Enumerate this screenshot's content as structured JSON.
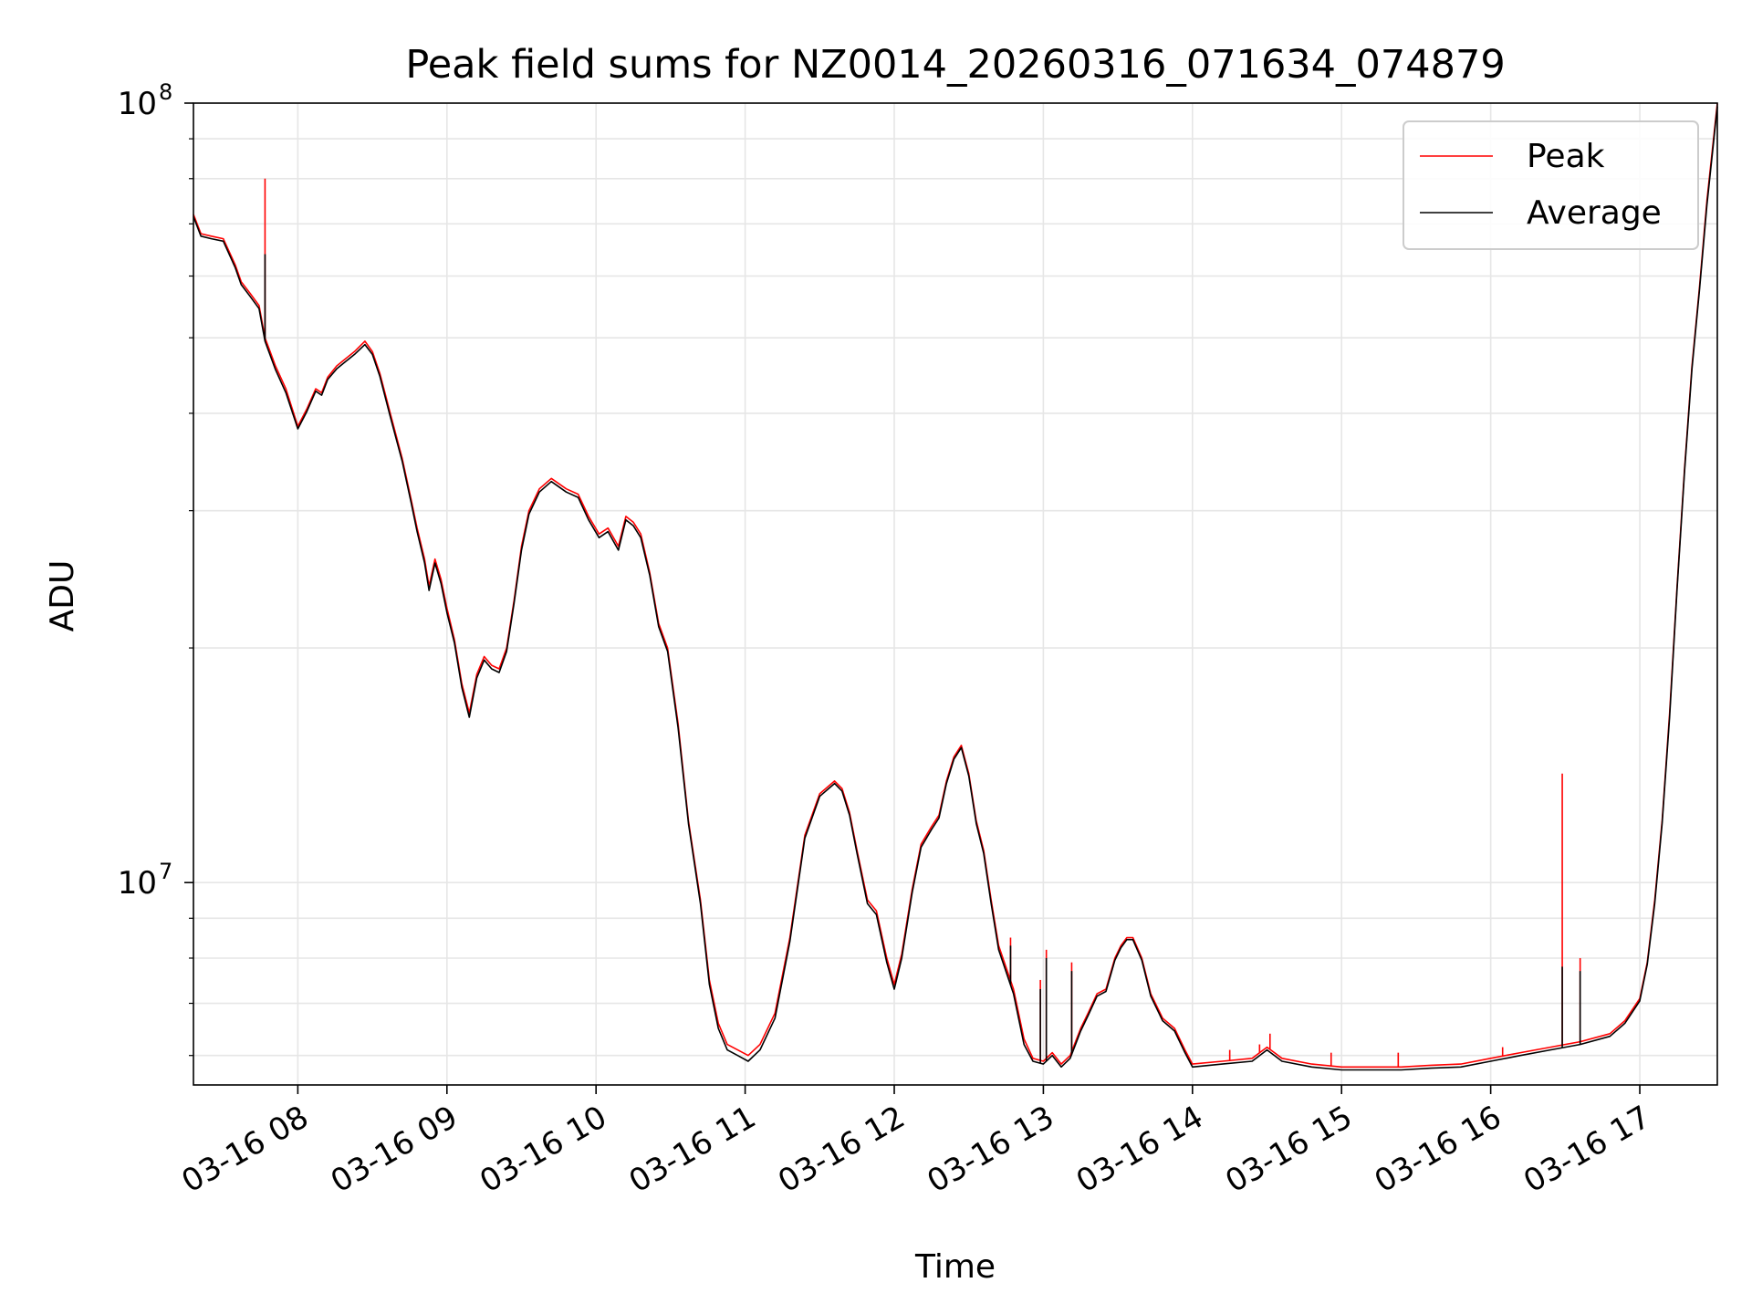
{
  "chart_data": {
    "type": "line",
    "title": "Peak field sums for NZ0014_20260316_071634_074879",
    "xlabel": "Time",
    "ylabel": "ADU",
    "yscale": "log",
    "ylim": [
      5500000,
      100000000
    ],
    "xlim": [
      7.3,
      17.52
    ],
    "grid": true,
    "legend_position": "top-right",
    "x_ticks": [
      {
        "value": 8,
        "label": "03-16 08"
      },
      {
        "value": 9,
        "label": "03-16 09"
      },
      {
        "value": 10,
        "label": "03-16 10"
      },
      {
        "value": 11,
        "label": "03-16 11"
      },
      {
        "value": 12,
        "label": "03-16 12"
      },
      {
        "value": 13,
        "label": "03-16 13"
      },
      {
        "value": 14,
        "label": "03-16 14"
      },
      {
        "value": 15,
        "label": "03-16 15"
      },
      {
        "value": 16,
        "label": "03-16 16"
      },
      {
        "value": 17,
        "label": "03-16 17"
      }
    ],
    "y_major_ticks": [
      {
        "value": 10000000,
        "base": "10",
        "exp": "7"
      },
      {
        "value": 100000000,
        "base": "10",
        "exp": "8"
      }
    ],
    "y_minor_ticks": [
      6000000,
      7000000,
      8000000,
      9000000,
      20000000,
      30000000,
      40000000,
      50000000,
      60000000,
      70000000,
      80000000,
      90000000
    ],
    "series": [
      {
        "name": "Peak",
        "color": "#ff0000",
        "x": [
          7.3,
          7.35,
          7.42,
          7.5,
          7.58,
          7.62,
          7.68,
          7.74,
          7.78,
          7.85,
          7.92,
          8.0,
          8.06,
          8.12,
          8.16,
          8.2,
          8.26,
          8.32,
          8.38,
          8.45,
          8.5,
          8.55,
          8.62,
          8.7,
          8.76,
          8.8,
          8.85,
          8.88,
          8.92,
          8.96,
          9.0,
          9.05,
          9.1,
          9.15,
          9.2,
          9.25,
          9.3,
          9.35,
          9.4,
          9.45,
          9.5,
          9.55,
          9.62,
          9.7,
          9.8,
          9.88,
          9.95,
          10.02,
          10.08,
          10.15,
          10.2,
          10.25,
          10.3,
          10.36,
          10.42,
          10.48,
          10.55,
          10.62,
          10.7,
          10.76,
          10.82,
          10.88,
          10.95,
          11.02,
          11.1,
          11.2,
          11.3,
          11.4,
          11.5,
          11.6,
          11.65,
          11.7,
          11.75,
          11.82,
          11.88,
          11.95,
          12.0,
          12.05,
          12.12,
          12.18,
          12.25,
          12.3,
          12.35,
          12.4,
          12.45,
          12.5,
          12.55,
          12.6,
          12.65,
          12.7,
          12.8,
          12.87,
          12.93,
          13.0,
          13.06,
          13.12,
          13.18,
          13.25,
          13.3,
          13.36,
          13.42,
          13.48,
          13.52,
          13.56,
          13.6,
          13.66,
          13.72,
          13.8,
          13.88,
          13.95,
          14.0,
          14.2,
          14.4,
          14.5,
          14.6,
          14.8,
          15.0,
          15.2,
          15.4,
          15.6,
          15.8,
          16.0,
          16.2,
          16.4,
          16.6,
          16.8,
          16.9,
          17.0,
          17.05,
          17.1,
          17.15,
          17.2,
          17.25,
          17.3,
          17.35,
          17.4,
          17.45,
          17.52
        ],
        "y": [
          72000000,
          68000000,
          67500000,
          67000000,
          62000000,
          59000000,
          57000000,
          55000000,
          50000000,
          46000000,
          43000000,
          38500000,
          40500000,
          43000000,
          42500000,
          44500000,
          46000000,
          47000000,
          48000000,
          49500000,
          48000000,
          45000000,
          40000000,
          35000000,
          31000000,
          28500000,
          26000000,
          24000000,
          26000000,
          24500000,
          22500000,
          20500000,
          18000000,
          16500000,
          18500000,
          19500000,
          19000000,
          18800000,
          20000000,
          23000000,
          27000000,
          30000000,
          32000000,
          33000000,
          32000000,
          31500000,
          29500000,
          28000000,
          28500000,
          27000000,
          29500000,
          29000000,
          28000000,
          25000000,
          21500000,
          20000000,
          16000000,
          12000000,
          9500000,
          7500000,
          6600000,
          6200000,
          6100000,
          6000000,
          6200000,
          6800000,
          8500000,
          11500000,
          13000000,
          13500000,
          13200000,
          12300000,
          11000000,
          9500000,
          9200000,
          8000000,
          7400000,
          8100000,
          9800000,
          11200000,
          11800000,
          12200000,
          13500000,
          14500000,
          15000000,
          13800000,
          12000000,
          11000000,
          9500000,
          8300000,
          7300000,
          6300000,
          5950000,
          5900000,
          6050000,
          5850000,
          6000000,
          6500000,
          6800000,
          7200000,
          7300000,
          8000000,
          8300000,
          8500000,
          8500000,
          8000000,
          7200000,
          6700000,
          6500000,
          6100000,
          5850000,
          5900000,
          5950000,
          6150000,
          5950000,
          5850000,
          5800000,
          5800000,
          5800000,
          5830000,
          5850000,
          5950000,
          6050000,
          6150000,
          6250000,
          6400000,
          6650000,
          7100000,
          7900000,
          9500000,
          12000000,
          16500000,
          24000000,
          34000000,
          46000000,
          58000000,
          75000000,
          100000000
        ]
      },
      {
        "name": "Average",
        "color": "#000000",
        "x": [
          7.3,
          7.35,
          7.42,
          7.5,
          7.58,
          7.62,
          7.68,
          7.74,
          7.78,
          7.85,
          7.92,
          8.0,
          8.06,
          8.12,
          8.16,
          8.2,
          8.26,
          8.32,
          8.38,
          8.45,
          8.5,
          8.55,
          8.62,
          8.7,
          8.76,
          8.8,
          8.85,
          8.88,
          8.92,
          8.96,
          9.0,
          9.05,
          9.1,
          9.15,
          9.2,
          9.25,
          9.3,
          9.35,
          9.4,
          9.45,
          9.5,
          9.55,
          9.62,
          9.7,
          9.8,
          9.88,
          9.95,
          10.02,
          10.08,
          10.15,
          10.2,
          10.25,
          10.3,
          10.36,
          10.42,
          10.48,
          10.55,
          10.62,
          10.7,
          10.76,
          10.82,
          10.88,
          10.95,
          11.02,
          11.1,
          11.2,
          11.3,
          11.4,
          11.5,
          11.6,
          11.65,
          11.7,
          11.75,
          11.82,
          11.88,
          11.95,
          12.0,
          12.05,
          12.12,
          12.18,
          12.25,
          12.3,
          12.35,
          12.4,
          12.45,
          12.5,
          12.55,
          12.6,
          12.65,
          12.7,
          12.8,
          12.87,
          12.93,
          13.0,
          13.06,
          13.12,
          13.18,
          13.25,
          13.3,
          13.36,
          13.42,
          13.48,
          13.52,
          13.56,
          13.6,
          13.66,
          13.72,
          13.8,
          13.88,
          13.95,
          14.0,
          14.2,
          14.4,
          14.5,
          14.6,
          14.8,
          15.0,
          15.2,
          15.4,
          15.6,
          15.8,
          16.0,
          16.2,
          16.4,
          16.6,
          16.8,
          16.9,
          17.0,
          17.05,
          17.1,
          17.15,
          17.2,
          17.25,
          17.3,
          17.35,
          17.4,
          17.45,
          17.52
        ],
        "y": [
          71500000,
          67500000,
          67000000,
          66500000,
          61500000,
          58500000,
          56500000,
          54500000,
          49500000,
          45500000,
          42500000,
          38200000,
          40200000,
          42700000,
          42200000,
          44200000,
          45600000,
          46600000,
          47600000,
          49000000,
          47600000,
          44600000,
          39600000,
          34700000,
          30700000,
          28200000,
          25700000,
          23700000,
          25700000,
          24200000,
          22200000,
          20300000,
          17800000,
          16300000,
          18300000,
          19300000,
          18800000,
          18600000,
          19800000,
          22800000,
          26700000,
          29700000,
          31700000,
          32700000,
          31700000,
          31200000,
          29200000,
          27700000,
          28200000,
          26700000,
          29200000,
          28700000,
          27700000,
          24800000,
          21300000,
          19800000,
          15800000,
          11900000,
          9400000,
          7400000,
          6500000,
          6100000,
          6000000,
          5900000,
          6100000,
          6700000,
          8400000,
          11400000,
          12900000,
          13400000,
          13100000,
          12200000,
          10900000,
          9400000,
          9100000,
          7900000,
          7300000,
          8000000,
          9700000,
          11100000,
          11700000,
          12100000,
          13400000,
          14400000,
          14900000,
          13700000,
          11900000,
          10900000,
          9400000,
          8200000,
          7200000,
          6200000,
          5900000,
          5850000,
          6000000,
          5800000,
          5950000,
          6450000,
          6750000,
          7150000,
          7250000,
          7950000,
          8250000,
          8450000,
          8450000,
          7950000,
          7150000,
          6650000,
          6450000,
          6050000,
          5800000,
          5850000,
          5900000,
          6100000,
          5900000,
          5800000,
          5750000,
          5750000,
          5750000,
          5780000,
          5800000,
          5900000,
          6000000,
          6100000,
          6200000,
          6350000,
          6600000,
          7050000,
          7850000,
          9400000,
          11900000,
          16300000,
          23800000,
          33700000,
          45600000,
          57500000,
          74000000,
          99000000
        ]
      }
    ],
    "spikes": [
      {
        "series": "Peak",
        "x": 7.78,
        "y": 80000000
      },
      {
        "series": "Average",
        "x": 7.78,
        "y": 64000000
      },
      {
        "series": "Peak",
        "x": 12.78,
        "y": 8500000
      },
      {
        "series": "Average",
        "x": 12.78,
        "y": 8300000
      },
      {
        "series": "Peak",
        "x": 12.98,
        "y": 7500000
      },
      {
        "series": "Average",
        "x": 12.98,
        "y": 7300000
      },
      {
        "series": "Peak",
        "x": 13.02,
        "y": 8200000
      },
      {
        "series": "Average",
        "x": 13.02,
        "y": 8000000
      },
      {
        "series": "Peak",
        "x": 13.19,
        "y": 7900000
      },
      {
        "series": "Average",
        "x": 13.19,
        "y": 7700000
      },
      {
        "series": "Peak",
        "x": 14.25,
        "y": 6100000
      },
      {
        "series": "Peak",
        "x": 14.45,
        "y": 6200000
      },
      {
        "series": "Peak",
        "x": 14.52,
        "y": 6400000
      },
      {
        "series": "Peak",
        "x": 14.93,
        "y": 6050000
      },
      {
        "series": "Peak",
        "x": 15.38,
        "y": 6050000
      },
      {
        "series": "Peak",
        "x": 16.08,
        "y": 6150000
      },
      {
        "series": "Peak",
        "x": 16.48,
        "y": 13800000
      },
      {
        "series": "Average",
        "x": 16.48,
        "y": 7800000
      },
      {
        "series": "Peak",
        "x": 16.6,
        "y": 8000000
      },
      {
        "series": "Average",
        "x": 16.6,
        "y": 7700000
      }
    ]
  }
}
